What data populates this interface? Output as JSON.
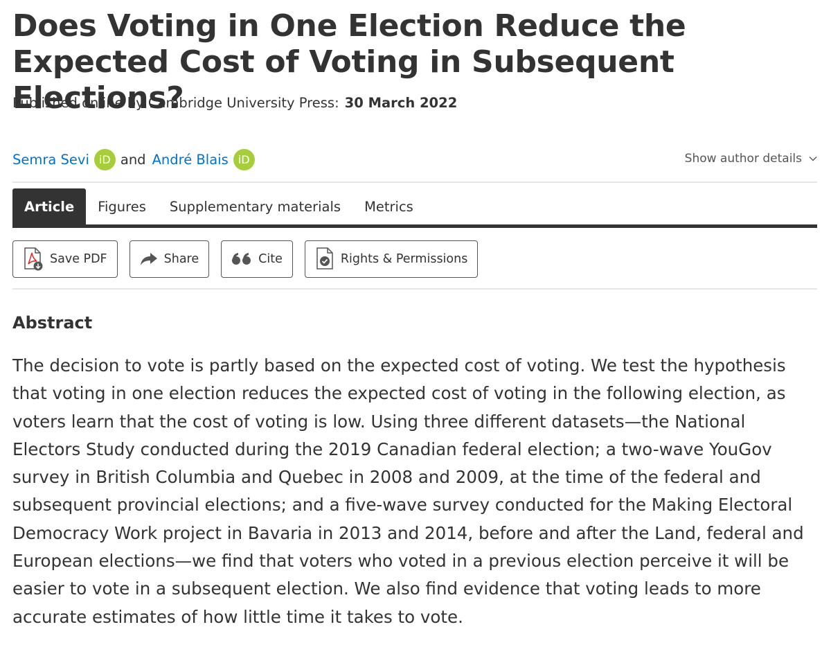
{
  "article": {
    "title": "Does Voting in One Election Reduce the Expected Cost of Voting in Subsequent Elections?",
    "published_label": "Published online by Cambridge University Press:",
    "published_date": "30 March 2022"
  },
  "authors": {
    "author1": "Semra Sevi",
    "conjunction": "and",
    "author2": "André Blais",
    "orcid_badge": "iD",
    "show_details": "Show author details"
  },
  "tabs": {
    "article": "Article",
    "figures": "Figures",
    "supplementary": "Supplementary materials",
    "metrics": "Metrics"
  },
  "actions": {
    "save_pdf": "Save PDF",
    "share": "Share",
    "cite": "Cite",
    "rights": "Rights & Permissions"
  },
  "icons": {
    "pdf": "pdf-download-icon",
    "share": "share-arrow-icon",
    "cite": "quote-icon",
    "rights": "document-check-icon",
    "orcid": "orcid-icon",
    "chevron": "chevron-down-icon"
  },
  "colors": {
    "link": "#0072cf",
    "orcid": "#a6ce39",
    "active_tab": "#333333",
    "pdf_red": "#e2231a"
  },
  "abstract": {
    "heading": "Abstract",
    "text": "The decision to vote is partly based on the expected cost of voting. We test the hypothesis that voting in one election reduces the expected cost of voting in the following election, as voters learn that the cost of voting is low. Using three different datasets—the National Electors Study conducted during the 2019 Canadian federal election; a two-wave YouGov survey in British Columbia and Quebec in 2008 and 2009, at the time of the federal and subsequent provincial elections; and a five-wave survey conducted for the Making Electoral Democracy Work project in Bavaria in 2013 and 2014, before and after the Land, federal and European elections—we find that voters who voted in a previous election perceive it will be easier to vote in a subsequent election. We also find evidence that voting leads to more accurate estimates of how little time it takes to vote."
  }
}
